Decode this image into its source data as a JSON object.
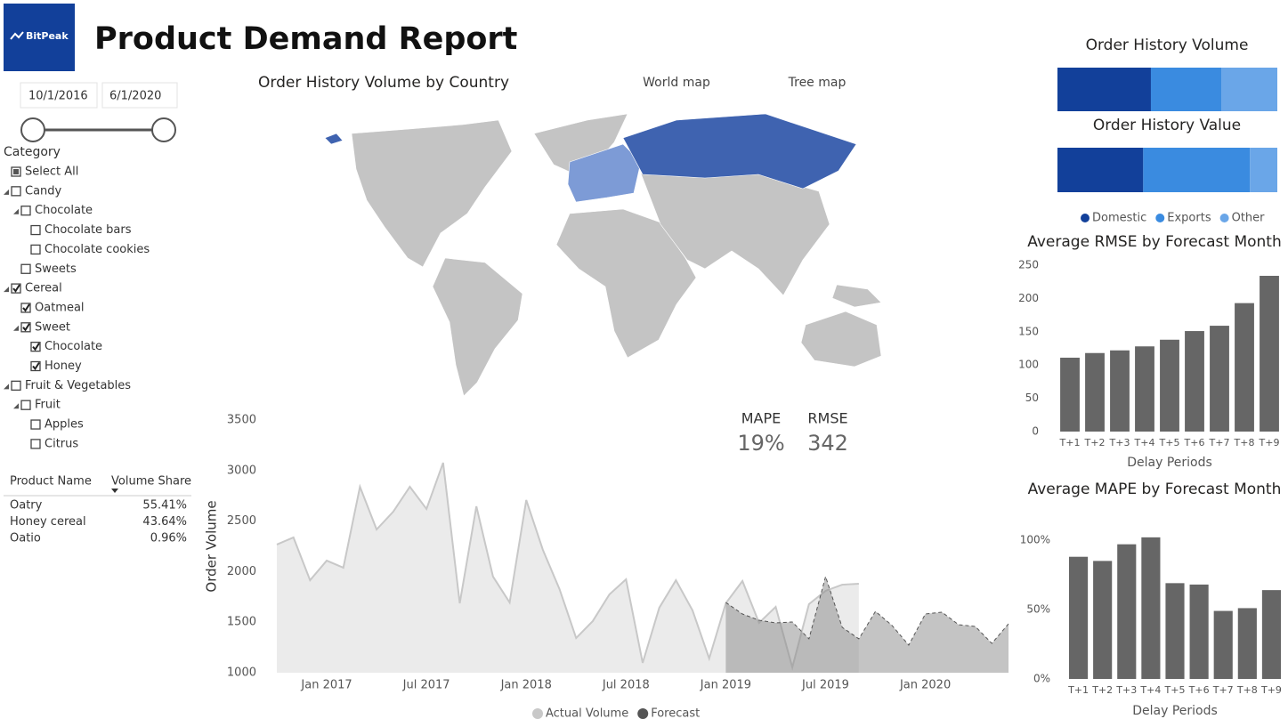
{
  "header": {
    "logo": "BitPeak",
    "title": "Product Demand Report"
  },
  "date_slicer": {
    "start": "10/1/2016",
    "end": "6/1/2020"
  },
  "category": {
    "title": "Category",
    "items": [
      {
        "label": "Select All",
        "level": 0,
        "state": "partial",
        "expandable": false
      },
      {
        "label": "Candy",
        "level": 0,
        "state": "unchecked",
        "expandable": true
      },
      {
        "label": "Chocolate",
        "level": 1,
        "state": "unchecked",
        "expandable": true
      },
      {
        "label": "Chocolate bars",
        "level": 2,
        "state": "unchecked",
        "expandable": false
      },
      {
        "label": "Chocolate cookies",
        "level": 2,
        "state": "unchecked",
        "expandable": false
      },
      {
        "label": "Sweets",
        "level": 1,
        "state": "unchecked",
        "expandable": false
      },
      {
        "label": "Cereal",
        "level": 0,
        "state": "checked",
        "expandable": true
      },
      {
        "label": "Oatmeal",
        "level": 1,
        "state": "checked",
        "expandable": false
      },
      {
        "label": "Sweet",
        "level": 1,
        "state": "checked",
        "expandable": true
      },
      {
        "label": "Chocolate",
        "level": 2,
        "state": "checked",
        "expandable": false
      },
      {
        "label": "Honey",
        "level": 2,
        "state": "checked",
        "expandable": false
      },
      {
        "label": "Fruit & Vegetables",
        "level": 0,
        "state": "unchecked",
        "expandable": true
      },
      {
        "label": "Fruit",
        "level": 1,
        "state": "unchecked",
        "expandable": true
      },
      {
        "label": "Apples",
        "level": 2,
        "state": "unchecked",
        "expandable": false
      },
      {
        "label": "Citrus",
        "level": 2,
        "state": "unchecked",
        "expandable": false
      }
    ]
  },
  "table": {
    "columns": [
      "Product Name",
      "Volume Share"
    ],
    "rows": [
      [
        "Oatry",
        "55.41%"
      ],
      [
        "Honey cereal",
        "43.64%"
      ],
      [
        "Oatio",
        "0.96%"
      ]
    ]
  },
  "map": {
    "title": "Order History Volume by Country",
    "tabs": [
      "World map",
      "Tree map"
    ]
  },
  "kpis": [
    {
      "label": "MAPE",
      "value": "19%"
    },
    {
      "label": "RMSE",
      "value": "342"
    }
  ],
  "chart_data": [
    {
      "type": "stacked_bar",
      "categories": [
        "Order History Volume",
        "Order History Value"
      ],
      "series": [
        {
          "name": "Domestic",
          "color": "#12409a",
          "values": [
            42.5,
            39
          ]
        },
        {
          "name": "Exports",
          "color": "#3a8be0",
          "values": [
            32,
            48.5
          ]
        },
        {
          "name": "Other",
          "color": "#6aa6e8",
          "values": [
            25.5,
            12.5
          ]
        }
      ],
      "legend": "bottom"
    },
    {
      "type": "bar",
      "title": "Average RMSE by Forecast Month",
      "xlabel": "Delay Periods",
      "color": "#666666",
      "categories": [
        "T+1",
        "T+2",
        "T+3",
        "T+4",
        "T+5",
        "T+6",
        "T+7",
        "T+8",
        "T+9"
      ],
      "values": [
        111,
        118,
        122,
        128,
        138,
        151,
        159,
        193,
        234
      ],
      "ylim": [
        0,
        250
      ],
      "yticks": [
        0,
        50,
        100,
        150,
        200,
        250
      ],
      "grid": false
    },
    {
      "type": "bar",
      "title": "Average MAPE by Forecast Month",
      "xlabel": "Delay Periods",
      "color": "#666666",
      "categories": [
        "T+1",
        "T+2",
        "T+3",
        "T+4",
        "T+5",
        "T+6",
        "T+7",
        "T+8",
        "T+9"
      ],
      "values": [
        88,
        85,
        97,
        102,
        69,
        68,
        49,
        51,
        64
      ],
      "ylim": [
        0,
        108
      ],
      "yticks": [
        {
          "value": 0,
          "label": "0%"
        },
        {
          "value": 50,
          "label": "50%"
        },
        {
          "value": 100,
          "label": "100%"
        }
      ],
      "grid": false
    },
    {
      "type": "area",
      "ylabel": "Order Volume",
      "x": [
        "2016-10",
        "2016-11",
        "2016-12",
        "2017-01",
        "2017-02",
        "2017-03",
        "2017-04",
        "2017-05",
        "2017-06",
        "2017-07",
        "2017-08",
        "2017-09",
        "2017-10",
        "2017-11",
        "2017-12",
        "2018-01",
        "2018-02",
        "2018-03",
        "2018-04",
        "2018-05",
        "2018-06",
        "2018-07",
        "2018-08",
        "2018-09",
        "2018-10",
        "2018-11",
        "2018-12",
        "2019-01",
        "2019-02",
        "2019-03",
        "2019-04",
        "2019-05",
        "2019-06",
        "2019-07",
        "2019-08",
        "2019-09",
        "2019-10",
        "2019-11",
        "2019-12",
        "2020-01",
        "2020-02",
        "2020-03",
        "2020-04",
        "2020-05",
        "2020-06"
      ],
      "series": [
        {
          "name": "Actual Volume",
          "color": "#c8c8c8",
          "fill": "#ebebeb",
          "fill_opacity": 1,
          "line_style": "solid",
          "values": [
            2268,
            2338,
            1915,
            2109,
            2039,
            2840,
            2417,
            2593,
            2840,
            2620,
            3077,
            1687,
            2646,
            1951,
            1695,
            2708,
            2215,
            1827,
            1343,
            1511,
            1775,
            1924,
            1097,
            1643,
            1915,
            1616,
            1141,
            1687,
            1907,
            1493,
            1651,
            1053,
            1678,
            1810,
            1871,
            1880,
            null,
            null,
            null,
            null,
            null,
            null,
            null,
            null,
            null
          ]
        },
        {
          "name": "Forecast",
          "color": "#555555",
          "fill": "#8a8a8a",
          "fill_opacity": 0.5,
          "line_style": "dashed",
          "values": [
            null,
            null,
            null,
            null,
            null,
            null,
            null,
            null,
            null,
            null,
            null,
            null,
            null,
            null,
            null,
            null,
            null,
            null,
            null,
            null,
            null,
            null,
            null,
            null,
            null,
            null,
            null,
            1695,
            1581,
            1519,
            1493,
            1502,
            1335,
            1951,
            1449,
            1335,
            1607,
            1467,
            1273,
            1581,
            1599,
            1475,
            1458,
            1290,
            1484
          ]
        }
      ],
      "xlim": [
        "2016-10",
        "2020-06"
      ],
      "xticks": [
        {
          "value": "2017-01",
          "label": "Jan 2017"
        },
        {
          "value": "2017-07",
          "label": "Jul 2017"
        },
        {
          "value": "2018-01",
          "label": "Jan 2018"
        },
        {
          "value": "2018-07",
          "label": "Jul 2018"
        },
        {
          "value": "2019-01",
          "label": "Jan 2019"
        },
        {
          "value": "2019-07",
          "label": "Jul 2019"
        },
        {
          "value": "2020-01",
          "label": "Jan 2020"
        }
      ],
      "ylim": [
        1000,
        3500
      ],
      "yticks": [
        1000,
        1500,
        2000,
        2500,
        3000,
        3500
      ],
      "grid": false,
      "legend": "bottom"
    }
  ]
}
